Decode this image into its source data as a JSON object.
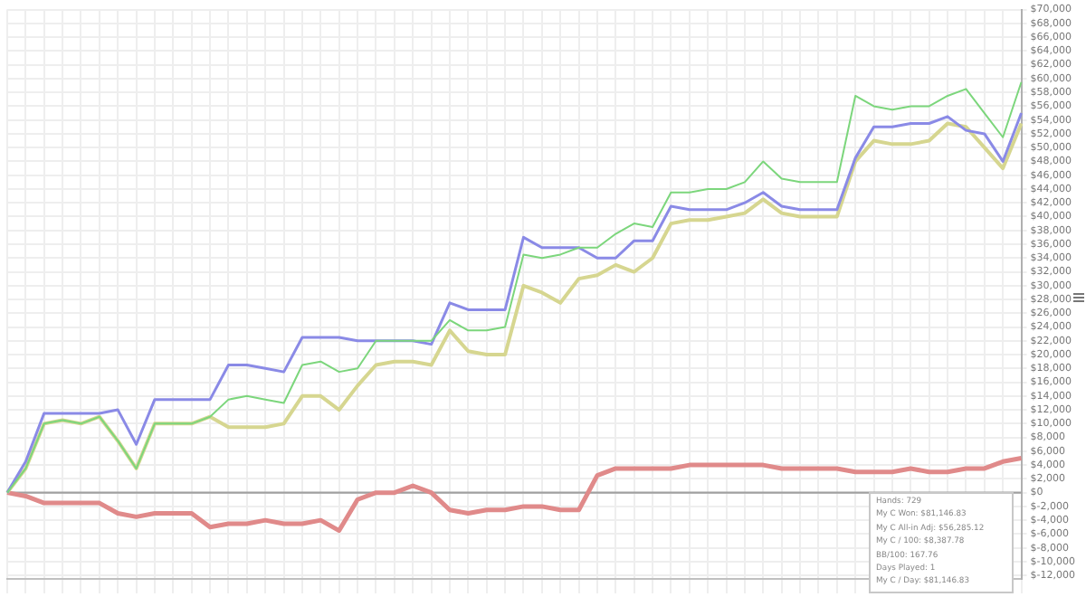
{
  "chart_data": {
    "type": "line",
    "categories": [
      null,
      null,
      null,
      null,
      null,
      null,
      null,
      null,
      null,
      null,
      null,
      null,
      null,
      null,
      null,
      null,
      null,
      null,
      null,
      null,
      null,
      null,
      null,
      null,
      null,
      null,
      null,
      null,
      null,
      null,
      null,
      null,
      null,
      null,
      null,
      null,
      null,
      null,
      null,
      null,
      null,
      null,
      null,
      null,
      null,
      null,
      null,
      null,
      null,
      null,
      null,
      null,
      null,
      null,
      null,
      null
    ],
    "series": [
      {
        "color": "#7cd67c",
        "values": [
          0,
          3500,
          10000,
          10500,
          10000,
          11000,
          7500,
          3500,
          10000,
          10000,
          10000,
          11000,
          13500,
          14000,
          13500,
          13000,
          18500,
          19000,
          17500,
          18000,
          22000,
          22000,
          22000,
          22000,
          25000,
          23500,
          23500,
          24000,
          34500,
          34000,
          34500,
          35500,
          35500,
          37500,
          39000,
          38500,
          43500,
          43500,
          44000,
          44000,
          45000,
          48000,
          45500,
          45000,
          45000,
          45000,
          57500,
          56000,
          55500,
          56000,
          56000,
          57500,
          58500,
          55000,
          51500,
          59500
        ]
      },
      {
        "color": "#8a8ae6",
        "values": [
          0,
          4500,
          11500,
          11500,
          11500,
          11500,
          12000,
          7000,
          13500,
          13500,
          13500,
          13500,
          18500,
          18500,
          18000,
          17500,
          22500,
          22500,
          22500,
          22000,
          22000,
          22000,
          22000,
          21500,
          27500,
          26500,
          26500,
          26500,
          37000,
          35500,
          35500,
          35500,
          34000,
          34000,
          36500,
          36500,
          41500,
          41000,
          41000,
          41000,
          42000,
          43500,
          41500,
          41000,
          41000,
          41000,
          48500,
          53000,
          53000,
          53500,
          53500,
          54500,
          52500,
          52000,
          48000,
          55000
        ]
      },
      {
        "color": "#d6d690",
        "values": [
          0,
          3500,
          10000,
          10500,
          10000,
          11000,
          7500,
          3500,
          10000,
          10000,
          10000,
          11000,
          9500,
          9500,
          9500,
          10000,
          14000,
          14000,
          12000,
          15500,
          18500,
          19000,
          19000,
          18500,
          23500,
          20500,
          20000,
          20000,
          30000,
          29000,
          27500,
          31000,
          31500,
          33000,
          32000,
          34000,
          39000,
          39500,
          39500,
          40000,
          40500,
          42500,
          40500,
          40000,
          40000,
          40000,
          48000,
          51000,
          50500,
          50500,
          51000,
          53500,
          53000,
          50000,
          47000,
          53500
        ]
      },
      {
        "color": "#e08a8a",
        "values": [
          0,
          -500,
          -1500,
          -1500,
          -1500,
          -1500,
          -3000,
          -3500,
          -3000,
          -3000,
          -3000,
          -5000,
          -4500,
          -4500,
          -4000,
          -4500,
          -4500,
          -4000,
          -5500,
          -1000,
          0,
          0,
          1000,
          0,
          -2500,
          -3000,
          -2500,
          -2500,
          -2000,
          -2000,
          -2500,
          -2500,
          2500,
          3500,
          3500,
          3500,
          3500,
          4000,
          4000,
          4000,
          4000,
          4000,
          3500,
          3500,
          3500,
          3500,
          3000,
          3000,
          3000,
          3500,
          3000,
          3000,
          3500,
          3500,
          4500,
          5000
        ]
      }
    ],
    "ylim": [
      -12500,
      70000
    ],
    "yticks": [
      {
        "value": -12000,
        "label": "$-12,000"
      },
      {
        "value": -10000,
        "label": "$-10,000"
      },
      {
        "value": -8000,
        "label": "$-8,000"
      },
      {
        "value": -6000,
        "label": "$-6,000"
      },
      {
        "value": -4000,
        "label": "$-4,000"
      },
      {
        "value": -2000,
        "label": "$-2,000"
      },
      {
        "value": 0,
        "label": "$0"
      },
      {
        "value": 2000,
        "label": "$2,000"
      },
      {
        "value": 4000,
        "label": "$4,000"
      },
      {
        "value": 6000,
        "label": "$6,000"
      },
      {
        "value": 8000,
        "label": "$8,000"
      },
      {
        "value": 10000,
        "label": "$10,000"
      },
      {
        "value": 12000,
        "label": "$12,000"
      },
      {
        "value": 14000,
        "label": "$14,000"
      },
      {
        "value": 16000,
        "label": "$16,000"
      },
      {
        "value": 18000,
        "label": "$18,000"
      },
      {
        "value": 20000,
        "label": "$20,000"
      },
      {
        "value": 22000,
        "label": "$22,000"
      },
      {
        "value": 24000,
        "label": "$24,000"
      },
      {
        "value": 26000,
        "label": "$26,000"
      },
      {
        "value": 28000,
        "label": "$28,000"
      },
      {
        "value": 30000,
        "label": "$30,000"
      },
      {
        "value": 32000,
        "label": "$32,000"
      },
      {
        "value": 34000,
        "label": "$34,000"
      },
      {
        "value": 36000,
        "label": "$36,000"
      },
      {
        "value": 38000,
        "label": "$38,000"
      },
      {
        "value": 40000,
        "label": "$40,000"
      },
      {
        "value": 42000,
        "label": "$42,000"
      },
      {
        "value": 44000,
        "label": "$44,000"
      },
      {
        "value": 46000,
        "label": "$46,000"
      },
      {
        "value": 48000,
        "label": "$48,000"
      },
      {
        "value": 50000,
        "label": "$50,000"
      },
      {
        "value": 52000,
        "label": "$52,000"
      },
      {
        "value": 54000,
        "label": "$54,000"
      },
      {
        "value": 56000,
        "label": "$56,000"
      },
      {
        "value": 58000,
        "label": "$58,000"
      },
      {
        "value": 60000,
        "label": "$60,000"
      },
      {
        "value": 62000,
        "label": "$62,000"
      },
      {
        "value": 64000,
        "label": "$64,000"
      },
      {
        "value": 66000,
        "label": "$66,000"
      },
      {
        "value": 68000,
        "label": "$68,000"
      },
      {
        "value": 70000,
        "label": "$70,000"
      }
    ],
    "ref_lines": [
      {
        "axis": "y",
        "value": 0,
        "color": "#a0a0a0"
      }
    ],
    "annotations": [
      "Hands: 729",
      "My C Won: $81,146.83",
      "My C All-in Adj: $56,285.12",
      "My C / 100: $8,387.78",
      "BB/100: 167.76",
      "Days Played: 1",
      "My C / Day: $81,146.83"
    ],
    "grid": true,
    "tick_labels": "y",
    "marker": "none",
    "line_style": "solid",
    "legend": false
  }
}
